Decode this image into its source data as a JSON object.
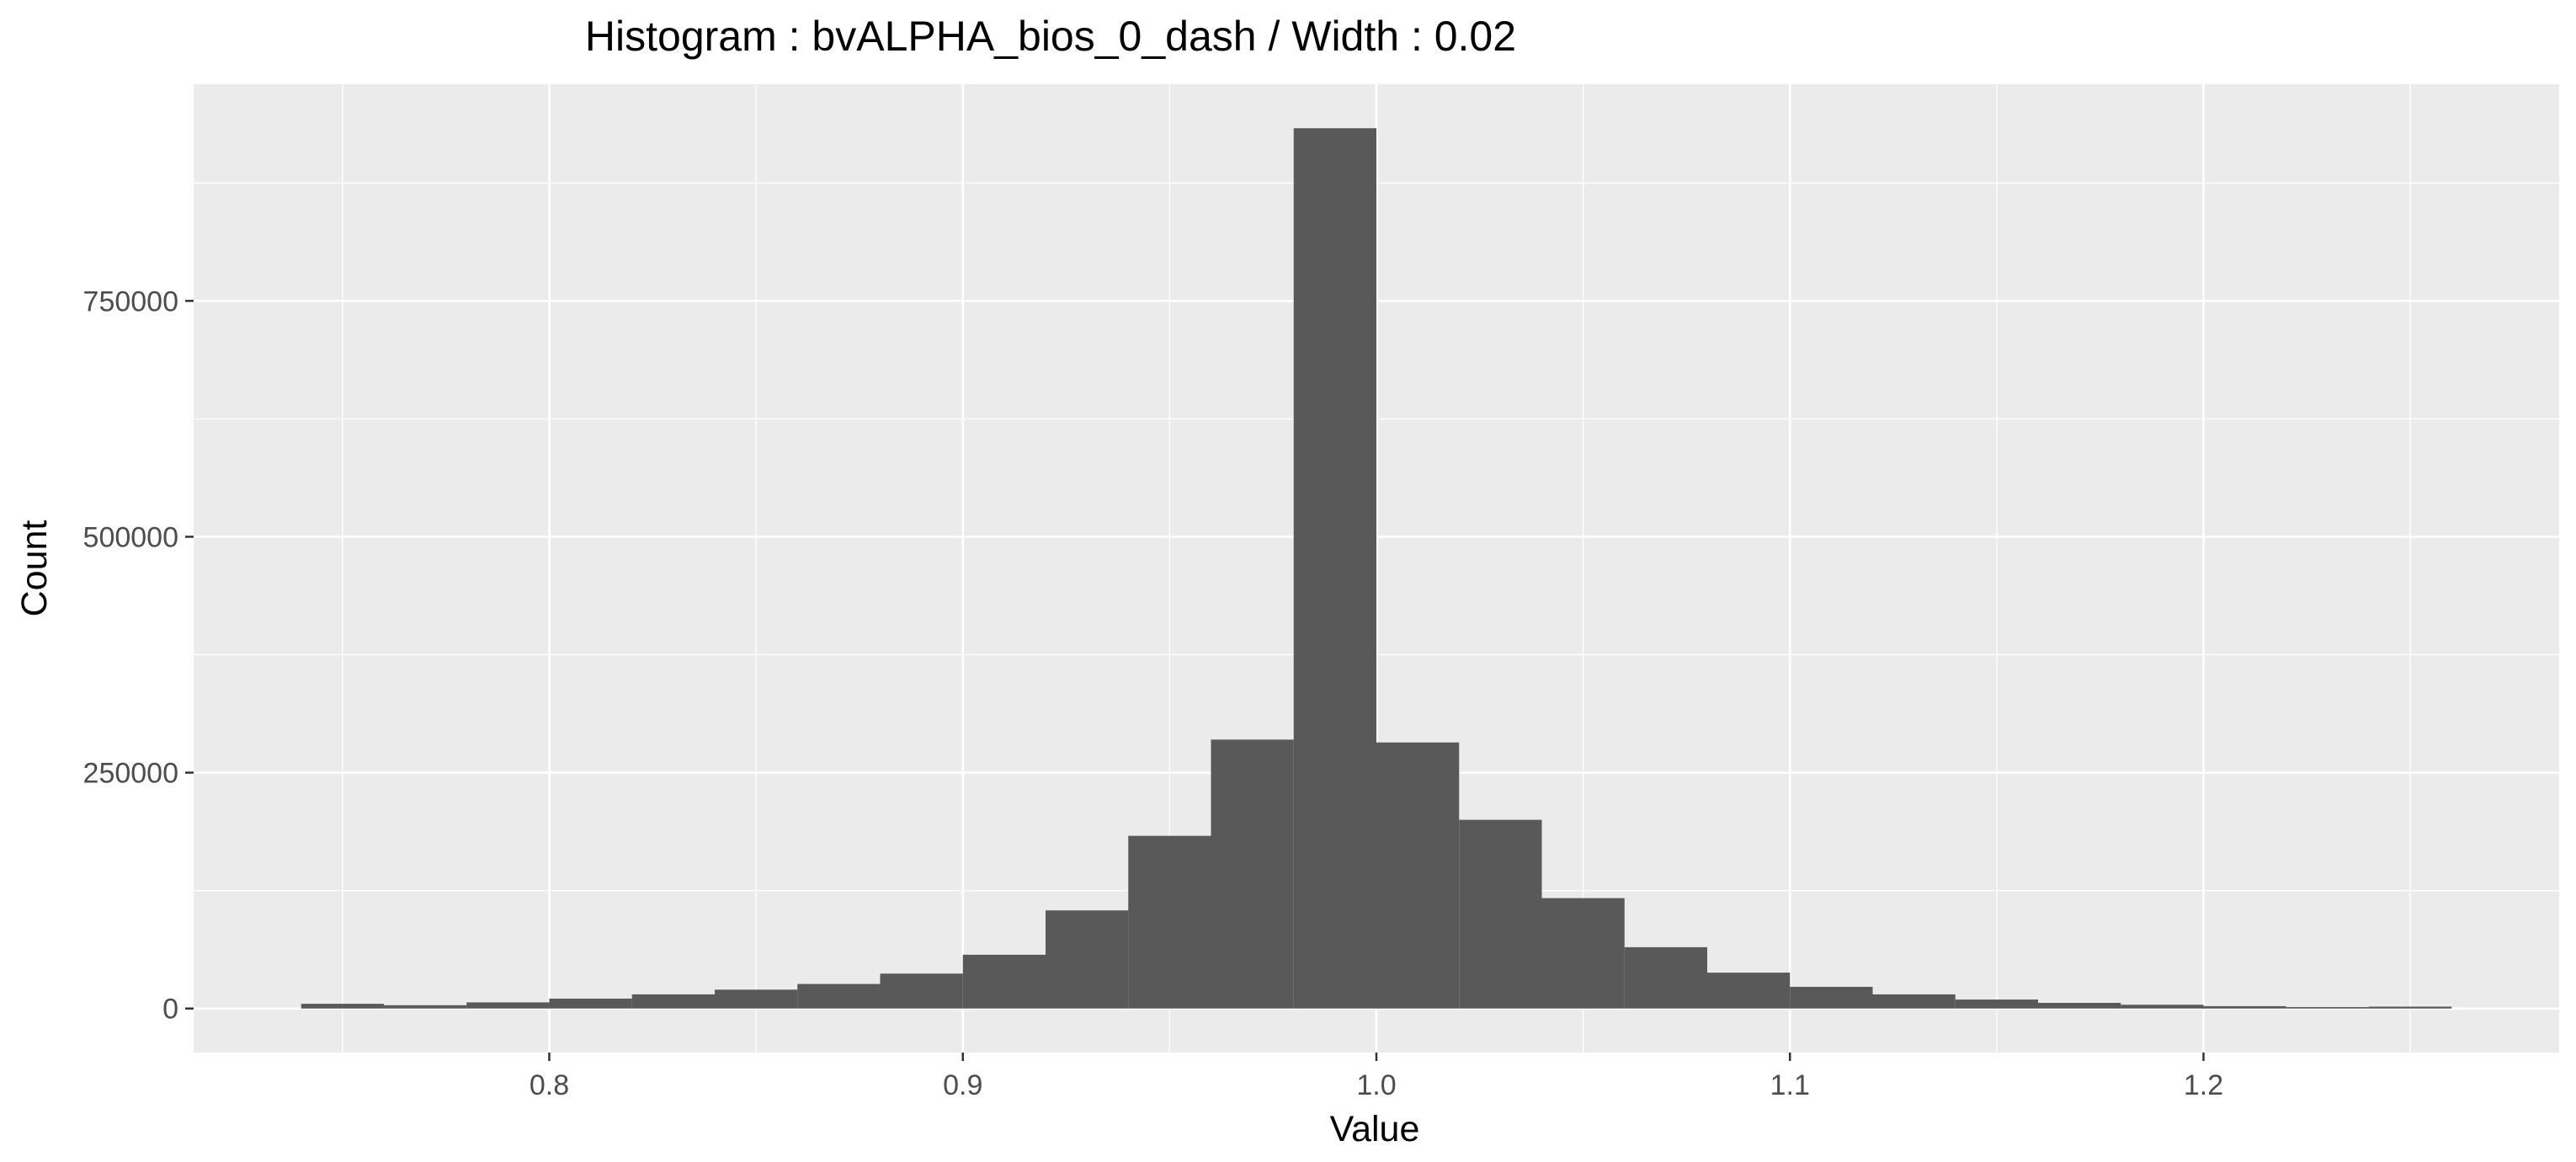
{
  "chart_data": {
    "type": "bar",
    "title": "Histogram : bvALPHA_bios_0_dash / Width : 0.02",
    "xlabel": "Value",
    "ylabel": "Count",
    "bin_width": 0.02,
    "bins": [
      {
        "x0": 0.74,
        "x1": 0.76,
        "count": 5000
      },
      {
        "x0": 0.76,
        "x1": 0.78,
        "count": 3500
      },
      {
        "x0": 0.78,
        "x1": 0.8,
        "count": 6500
      },
      {
        "x0": 0.8,
        "x1": 0.82,
        "count": 10500
      },
      {
        "x0": 0.82,
        "x1": 0.84,
        "count": 15000
      },
      {
        "x0": 0.84,
        "x1": 0.86,
        "count": 20000
      },
      {
        "x0": 0.86,
        "x1": 0.88,
        "count": 26000
      },
      {
        "x0": 0.88,
        "x1": 0.9,
        "count": 37000
      },
      {
        "x0": 0.9,
        "x1": 0.92,
        "count": 57000
      },
      {
        "x0": 0.92,
        "x1": 0.94,
        "count": 104000
      },
      {
        "x0": 0.94,
        "x1": 0.96,
        "count": 183000
      },
      {
        "x0": 0.96,
        "x1": 0.98,
        "count": 285000
      },
      {
        "x0": 0.98,
        "x1": 1.0,
        "count": 933000
      },
      {
        "x0": 1.0,
        "x1": 1.02,
        "count": 282000
      },
      {
        "x0": 1.02,
        "x1": 1.04,
        "count": 200000
      },
      {
        "x0": 1.04,
        "x1": 1.06,
        "count": 117000
      },
      {
        "x0": 1.06,
        "x1": 1.08,
        "count": 65000
      },
      {
        "x0": 1.08,
        "x1": 1.1,
        "count": 38000
      },
      {
        "x0": 1.1,
        "x1": 1.12,
        "count": 23000
      },
      {
        "x0": 1.12,
        "x1": 1.14,
        "count": 15000
      },
      {
        "x0": 1.14,
        "x1": 1.16,
        "count": 9500
      },
      {
        "x0": 1.16,
        "x1": 1.18,
        "count": 6000
      },
      {
        "x0": 1.18,
        "x1": 1.2,
        "count": 4000
      },
      {
        "x0": 1.2,
        "x1": 1.22,
        "count": 2500
      },
      {
        "x0": 1.22,
        "x1": 1.24,
        "count": 1500
      },
      {
        "x0": 1.24,
        "x1": 1.26,
        "count": 2000
      }
    ],
    "xlim": [
      0.714,
      1.286
    ],
    "ylim": [
      -46650,
      979650
    ],
    "x_ticks": [
      {
        "value": 0.8,
        "label": "0.8"
      },
      {
        "value": 0.9,
        "label": "0.9"
      },
      {
        "value": 1.0,
        "label": "1.0"
      },
      {
        "value": 1.1,
        "label": "1.1"
      },
      {
        "value": 1.2,
        "label": "1.2"
      }
    ],
    "y_ticks": [
      {
        "value": 0,
        "label": "0"
      },
      {
        "value": 250000,
        "label": "250000"
      },
      {
        "value": 500000,
        "label": "500000"
      },
      {
        "value": 750000,
        "label": "750000"
      }
    ],
    "grid": true,
    "legend": "none",
    "colors": {
      "panel_background": "#ebebeb",
      "grid_major": "#ffffff",
      "bar_fill": "#595959",
      "tick_text": "#4d4d4d",
      "tick_mark": "#333333",
      "text": "#000000"
    }
  }
}
